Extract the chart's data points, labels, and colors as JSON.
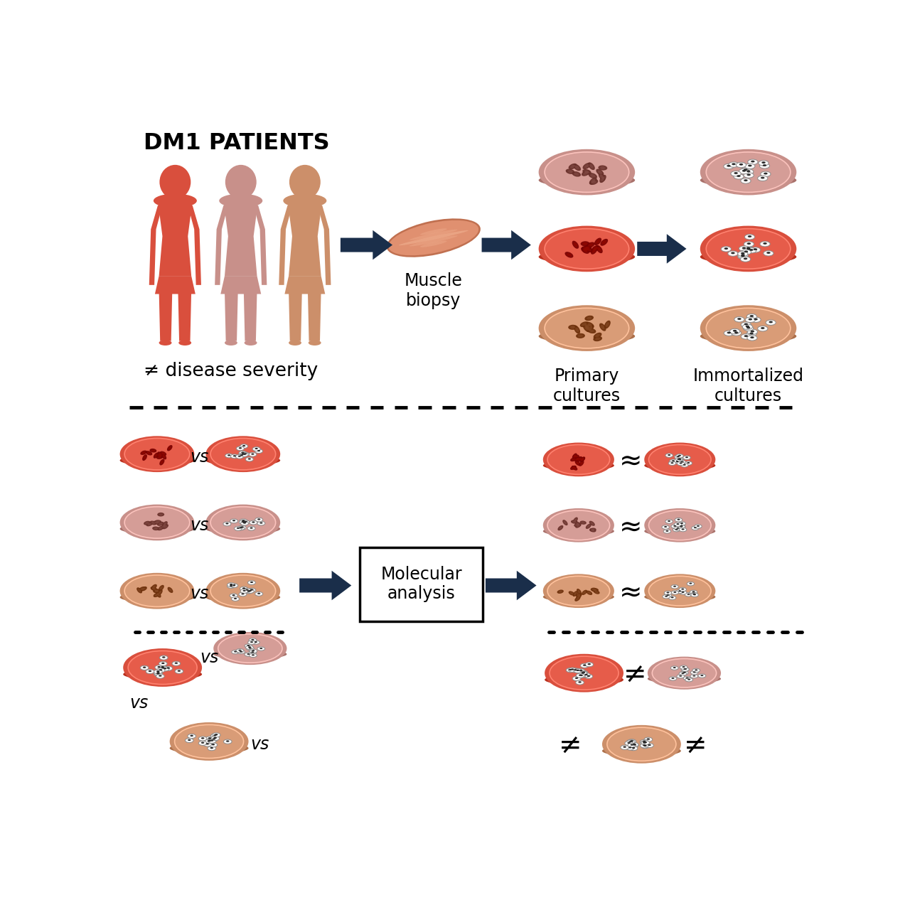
{
  "bg_color": "#ffffff",
  "patient_colors": [
    "#d94f3d",
    "#c8908a",
    "#cc8f6a"
  ],
  "dish_colors": [
    "#c8908a",
    "#d94f3d",
    "#cc8f6a"
  ],
  "arrow_color": "#1a2e4a",
  "text_color": "#000000",
  "label_primary": "Primary\ncultures",
  "label_immortal": "Immortalized\ncultures",
  "label_biopsy": "Muscle\nbiopsy",
  "label_patients": "DM1 PATIENTS",
  "label_severity": "≠ disease severity",
  "label_molecular": "Molecular\nanalysis",
  "approx_symbol": "≈",
  "not_equal_symbol": "≠",
  "muscle_color_main": "#e09070",
  "muscle_color_light": "#f0b090",
  "muscle_color_dark": "#c07050"
}
